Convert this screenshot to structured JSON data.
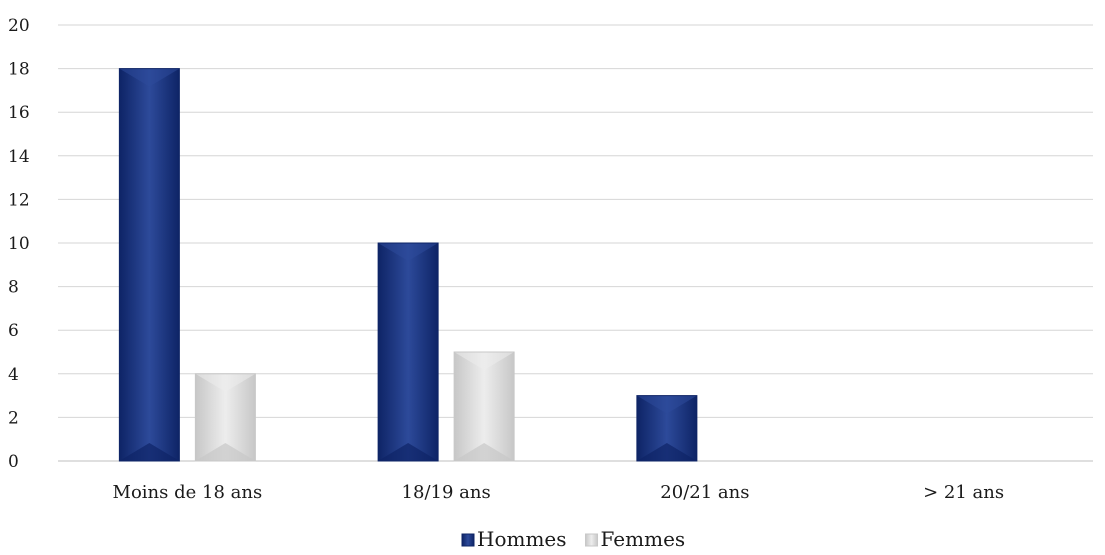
{
  "chart_data": {
    "type": "bar",
    "categories": [
      "Moins de 18 ans",
      "18/19 ans",
      "20/21 ans",
      "> 21 ans"
    ],
    "series": [
      {
        "name": "Hommes",
        "values": [
          18,
          10,
          3,
          0
        ],
        "color": "#0e2466",
        "highlight": "#2d4a9a"
      },
      {
        "name": "Femmes",
        "values": [
          4,
          5,
          0,
          0
        ],
        "color": "#c7c7c7",
        "highlight": "#ededed"
      }
    ],
    "title": "",
    "xlabel": "",
    "ylabel": "",
    "ylim": [
      0,
      20
    ],
    "yticks": [
      0,
      2,
      4,
      6,
      8,
      10,
      12,
      14,
      16,
      18,
      20
    ],
    "grid": true,
    "legend_position": "bottom-center"
  }
}
